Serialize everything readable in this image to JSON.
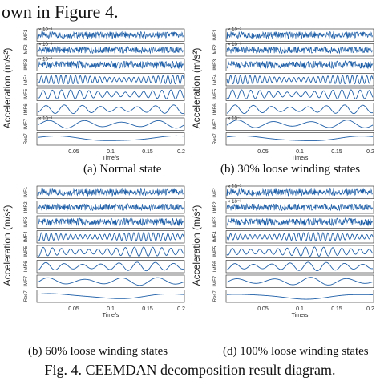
{
  "lead_text": "own in Figure 4.",
  "figure_caption": "Fig. 4.   CEEMDAN decomposition result diagram.",
  "colors": {
    "signal": "#1f5fa8",
    "axis": "#222222"
  },
  "panels": [
    {
      "caption": "(a) Normal state",
      "ylabel": "Acceleration (m/s²)",
      "xlabel": "Time/s",
      "xticks": [
        "0.05",
        "0.1",
        "0.15",
        "0.2"
      ],
      "rows": [
        {
          "label": "IMF1",
          "exp": "× 10⁻³",
          "freq": 90,
          "amp": 0.55
        },
        {
          "label": "IMF2",
          "exp": "× 10⁻³",
          "freq": 70,
          "amp": 0.55
        },
        {
          "label": "IMF3",
          "exp": "× 10⁻³",
          "freq": 48,
          "amp": 0.6
        },
        {
          "label": "IMF4",
          "exp": "",
          "freq": 30,
          "amp": 0.7
        },
        {
          "label": "IMF5",
          "exp": "",
          "freq": 16,
          "amp": 0.75
        },
        {
          "label": "IMF6",
          "exp": "",
          "freq": 8,
          "amp": 0.7
        },
        {
          "label": "IMF7",
          "exp": "× 10⁻³",
          "freq": 4,
          "amp": 0.65
        },
        {
          "label": "Res7",
          "exp": "",
          "freq": 1.2,
          "amp": 0.5
        }
      ]
    },
    {
      "caption": "(b) 30% loose winding states",
      "ylabel": "Acceleration (m/s²)",
      "xlabel": "Time/s",
      "xticks": [
        "0.05",
        "0.1",
        "0.15",
        "0.2"
      ],
      "rows": [
        {
          "label": "IMF1",
          "exp": "× 10⁻³",
          "freq": 90,
          "amp": 0.55
        },
        {
          "label": "IMF2",
          "exp": "× 10⁻³",
          "freq": 70,
          "amp": 0.55
        },
        {
          "label": "IMF3",
          "exp": "",
          "freq": 48,
          "amp": 0.6
        },
        {
          "label": "IMF4",
          "exp": "",
          "freq": 30,
          "amp": 0.7
        },
        {
          "label": "IMF5",
          "exp": "",
          "freq": 16,
          "amp": 0.75
        },
        {
          "label": "IMF6",
          "exp": "",
          "freq": 8,
          "amp": 0.7
        },
        {
          "label": "IMF7",
          "exp": "× 10⁻⁴",
          "freq": 4,
          "amp": 0.65
        },
        {
          "label": "Res7",
          "exp": "",
          "freq": 1.2,
          "amp": 0.5
        }
      ]
    },
    {
      "caption": "(b) 60% loose winding states",
      "ylabel": "Acceleration (m/s²)",
      "xlabel": "Time/s",
      "xticks": [
        "0.05",
        "0.1",
        "0.15",
        "0.2"
      ],
      "rows": [
        {
          "label": "IMF1",
          "exp": "",
          "freq": 90,
          "amp": 0.55
        },
        {
          "label": "IMF2",
          "exp": "",
          "freq": 70,
          "amp": 0.55
        },
        {
          "label": "IMF3",
          "exp": "",
          "freq": 48,
          "amp": 0.6
        },
        {
          "label": "IMF4",
          "exp": "",
          "freq": 30,
          "amp": 0.7
        },
        {
          "label": "IMF5",
          "exp": "",
          "freq": 16,
          "amp": 0.75
        },
        {
          "label": "IMF6",
          "exp": "",
          "freq": 8,
          "amp": 0.7
        },
        {
          "label": "IMF7",
          "exp": "",
          "freq": 4,
          "amp": 0.65
        },
        {
          "label": "Res7",
          "exp": "",
          "freq": 1.2,
          "amp": 0.5
        }
      ]
    },
    {
      "caption": "(d) 100% loose winding states",
      "ylabel": "Acceleration (m/s²)",
      "xlabel": "Time/s",
      "xticks": [
        "0.05",
        "0.1",
        "0.15",
        "0.2"
      ],
      "rows": [
        {
          "label": "IMF1",
          "exp": "× 10⁻³",
          "freq": 90,
          "amp": 0.55
        },
        {
          "label": "IMF2",
          "exp": "× 10⁻³",
          "freq": 70,
          "amp": 0.55
        },
        {
          "label": "IMF3",
          "exp": "",
          "freq": 48,
          "amp": 0.6
        },
        {
          "label": "IMF4",
          "exp": "",
          "freq": 30,
          "amp": 0.7
        },
        {
          "label": "IMF5",
          "exp": "",
          "freq": 16,
          "amp": 0.75
        },
        {
          "label": "IMF6",
          "exp": "",
          "freq": 8,
          "amp": 0.7
        },
        {
          "label": "IMF7",
          "exp": "",
          "freq": 4,
          "amp": 0.65
        },
        {
          "label": "Res7",
          "exp": "",
          "freq": 1.2,
          "amp": 0.5
        }
      ]
    }
  ]
}
